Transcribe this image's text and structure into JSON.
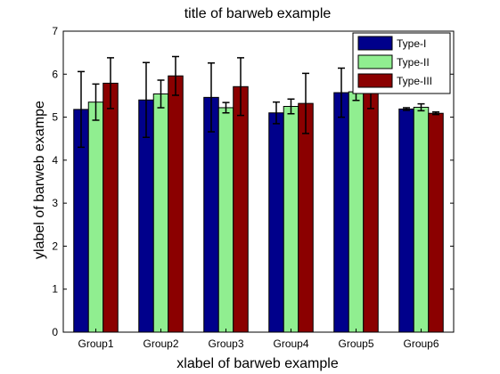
{
  "chart_data": {
    "type": "bar",
    "title": "title of barweb example",
    "xlabel": "xlabel of barweb example",
    "ylabel": "ylabel of barweb exampe",
    "ylim": [
      0,
      7
    ],
    "yticks": [
      0,
      1,
      2,
      3,
      4,
      5,
      6,
      7
    ],
    "grid": false,
    "legend_position": "top-right",
    "categories": [
      "Group1",
      "Group2",
      "Group3",
      "Group4",
      "Group5",
      "Group6"
    ],
    "series": [
      {
        "name": "Type-I",
        "color": "#00008b",
        "values": [
          5.18,
          5.4,
          5.46,
          5.1,
          5.57,
          5.19
        ],
        "errors": [
          0.88,
          0.87,
          0.8,
          0.25,
          0.57,
          0.03
        ]
      },
      {
        "name": "Type-II",
        "color": "#90ee90",
        "values": [
          5.35,
          5.54,
          5.22,
          5.25,
          5.59,
          5.23
        ],
        "errors": [
          0.42,
          0.32,
          0.12,
          0.17,
          0.2,
          0.08
        ]
      },
      {
        "name": "Type-III",
        "color": "#8b0000",
        "values": [
          5.79,
          5.96,
          5.71,
          5.32,
          5.65,
          5.09
        ],
        "errors": [
          0.59,
          0.45,
          0.67,
          0.7,
          0.45,
          0.03
        ]
      }
    ]
  }
}
